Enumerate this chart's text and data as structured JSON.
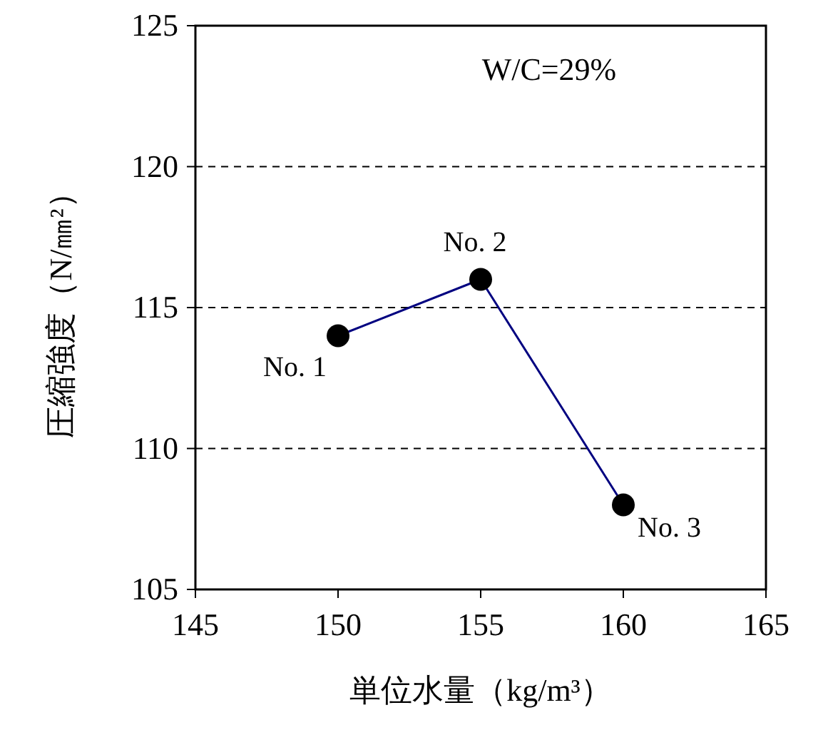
{
  "chart_data": {
    "type": "line",
    "xlabel": "単位水量（kg/m³）",
    "ylabel": "圧縮強度（N/㎜²）",
    "x": [
      150,
      155,
      160
    ],
    "series": [
      {
        "color": "#000080",
        "values": [
          114,
          116,
          108
        ]
      }
    ],
    "xlim": [
      145,
      165
    ],
    "xticks": [
      145,
      150,
      155,
      160,
      165
    ],
    "ylim": [
      105,
      125
    ],
    "yticks": [
      105,
      110,
      115,
      120,
      125
    ],
    "grid": "y",
    "marker": "circle",
    "line_style": "solid",
    "annotations": [
      "W/C=29%",
      {
        "text": "No. 1",
        "x": 150,
        "y": 114
      },
      {
        "text": "No. 2",
        "x": 155,
        "y": 116
      },
      {
        "text": "No. 3",
        "x": 160,
        "y": 108
      }
    ]
  }
}
